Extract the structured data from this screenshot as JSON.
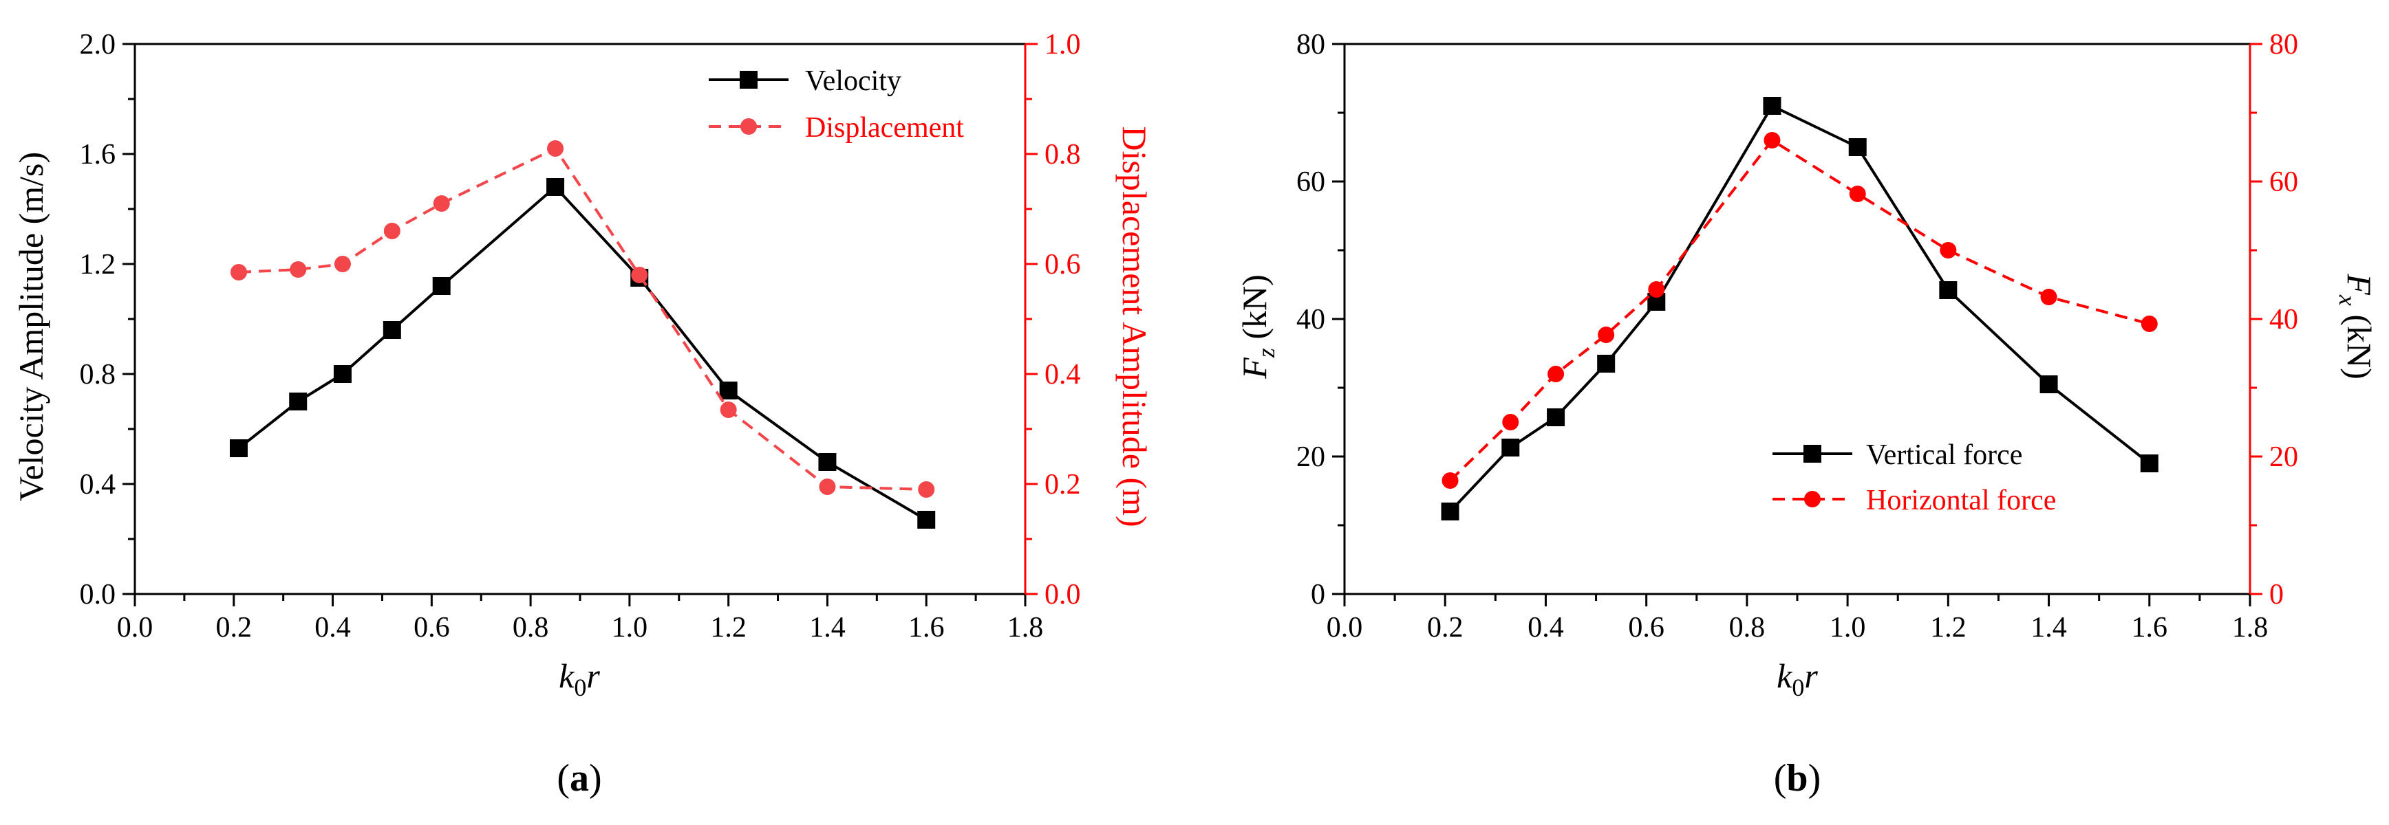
{
  "colors": {
    "black": "#000000",
    "red": "#ff0000",
    "red_light": "#f2464a"
  },
  "chart_data": [
    {
      "id": "a",
      "type": "line",
      "panel_label": "a",
      "x": [
        0.21,
        0.33,
        0.42,
        0.52,
        0.62,
        0.85,
        1.02,
        1.2,
        1.4,
        1.6
      ],
      "xlabel_main": "k",
      "xlabel_sub": "0",
      "xlabel_tail": "r",
      "xlim": [
        0.0,
        1.8
      ],
      "xticks": [
        0.0,
        0.2,
        0.4,
        0.6,
        0.8,
        1.0,
        1.2,
        1.4,
        1.6,
        1.8
      ],
      "xtick_labels": [
        "0.0",
        "0.2",
        "0.4",
        "0.6",
        "0.8",
        "1.0",
        "1.2",
        "1.4",
        "1.6",
        "1.8"
      ],
      "left_axis": {
        "label": "Velocity Amplitude (m/s)",
        "lim": [
          0.0,
          2.0
        ],
        "ticks": [
          0.0,
          0.4,
          0.8,
          1.2,
          1.6,
          2.0
        ],
        "tick_labels": [
          "0.0",
          "0.4",
          "0.8",
          "1.2",
          "1.6",
          "2.0"
        ]
      },
      "right_axis": {
        "label": "Displacement Amplitude (m)",
        "lim": [
          0.0,
          1.0
        ],
        "ticks": [
          0.0,
          0.2,
          0.4,
          0.6,
          0.8,
          1.0
        ],
        "tick_labels": [
          "0.0",
          "0.2",
          "0.4",
          "0.6",
          "0.8",
          "1.0"
        ]
      },
      "series": [
        {
          "name": "Velocity",
          "axis": "left",
          "style": "solid-square",
          "values": [
            0.53,
            0.7,
            0.8,
            0.96,
            1.12,
            1.48,
            1.15,
            0.74,
            0.48,
            0.27
          ]
        },
        {
          "name": "Displacement",
          "axis": "right",
          "style": "dashed-circle",
          "values": [
            0.585,
            0.59,
            0.6,
            0.66,
            0.71,
            0.81,
            0.58,
            0.335,
            0.195,
            0.19
          ]
        }
      ],
      "legend_position": "top-right"
    },
    {
      "id": "b",
      "type": "line",
      "panel_label": "b",
      "x": [
        0.21,
        0.33,
        0.42,
        0.52,
        0.62,
        0.85,
        1.02,
        1.2,
        1.4,
        1.6
      ],
      "xlabel_main": "k",
      "xlabel_sub": "0",
      "xlabel_tail": "r",
      "xlim": [
        0.0,
        1.8
      ],
      "xticks": [
        0.0,
        0.2,
        0.4,
        0.6,
        0.8,
        1.0,
        1.2,
        1.4,
        1.6,
        1.8
      ],
      "xtick_labels": [
        "0.0",
        "0.2",
        "0.4",
        "0.6",
        "0.8",
        "1.0",
        "1.2",
        "1.4",
        "1.6",
        "1.8"
      ],
      "left_axis": {
        "label_main": "F",
        "label_sub": "z",
        "label_tail": " (kN)",
        "lim": [
          0,
          80
        ],
        "ticks": [
          0,
          20,
          40,
          60,
          80
        ],
        "tick_labels": [
          "0",
          "20",
          "40",
          "60",
          "80"
        ]
      },
      "right_axis": {
        "label_main": "F",
        "label_sub": "x",
        "label_tail": " (kN)",
        "lim": [
          0,
          80
        ],
        "ticks": [
          0,
          20,
          40,
          60,
          80
        ],
        "tick_labels": [
          "0",
          "20",
          "40",
          "60",
          "80"
        ]
      },
      "series": [
        {
          "name": "Vertical force",
          "axis": "left",
          "style": "solid-square",
          "values": [
            12,
            21.3,
            25.7,
            33.5,
            42.5,
            71,
            65,
            44.2,
            30.5,
            19
          ]
        },
        {
          "name": "Horizontal force",
          "axis": "right",
          "style": "dashed-circle",
          "values": [
            16.5,
            25,
            32,
            37.7,
            44.3,
            66,
            58.2,
            50,
            43.2,
            39.3
          ]
        }
      ],
      "legend_position": "bottom-right"
    }
  ]
}
